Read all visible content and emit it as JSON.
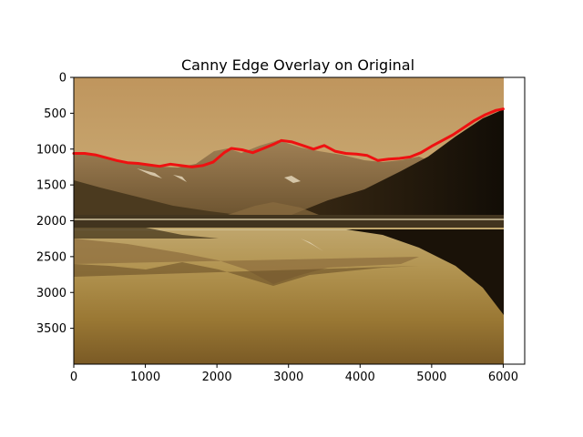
{
  "chart_data": {
    "type": "image",
    "title": "Canny Edge Overlay on Original",
    "xlabel": "",
    "ylabel": "",
    "xlim": [
      0,
      6300
    ],
    "ylim": [
      4000,
      0
    ],
    "image_extent": {
      "width": 6000,
      "height": 4000
    },
    "x_ticks": [
      "0",
      "1000",
      "2000",
      "3000",
      "4000",
      "5000",
      "6000"
    ],
    "y_ticks": [
      "0",
      "500",
      "1000",
      "1500",
      "2000",
      "2500",
      "3000",
      "3500"
    ],
    "series": [
      {
        "color": "#ee1111",
        "x": [
          0,
          150,
          300,
          450,
          600,
          750,
          900,
          1050,
          1200,
          1350,
          1500,
          1650,
          1800,
          1950,
          2100,
          2200,
          2350,
          2500,
          2650,
          2800,
          2900,
          3050,
          3200,
          3350,
          3500,
          3650,
          3800,
          3950,
          4100,
          4250,
          4400,
          4550,
          4700,
          4850,
          5000,
          5150,
          5300,
          5450,
          5600,
          5750,
          5900,
          6000
        ],
        "y": [
          1060,
          1060,
          1080,
          1120,
          1160,
          1190,
          1200,
          1220,
          1240,
          1210,
          1230,
          1250,
          1230,
          1180,
          1050,
          990,
          1010,
          1050,
          990,
          930,
          880,
          900,
          950,
          1000,
          950,
          1030,
          1060,
          1070,
          1090,
          1160,
          1140,
          1130,
          1110,
          1050,
          960,
          880,
          800,
          700,
          600,
          520,
          460,
          440
        ]
      }
    ],
    "colors": {
      "edge_line": "#ee1111",
      "sky_top": "#bf955d",
      "sky_mid": "#d7c18c",
      "mountain_far": "#a98653",
      "mountain_dark": "#1c150b",
      "water": "#b39552",
      "water_bottom": "#7a5a25"
    },
    "grid": false,
    "legend": "none"
  }
}
